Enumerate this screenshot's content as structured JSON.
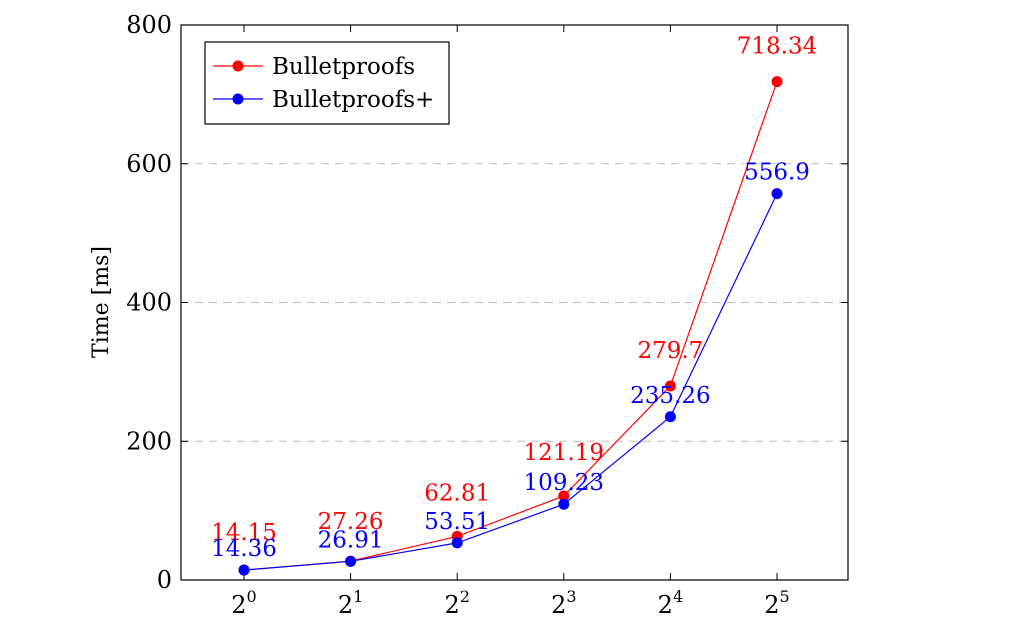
{
  "chart_data": {
    "type": "line",
    "title": "",
    "xlabel": "",
    "ylabel": "Time [ms]",
    "x": [
      1,
      2,
      4,
      8,
      16,
      32
    ],
    "x_tick_labels": [
      {
        "base": "2",
        "exp": "0"
      },
      {
        "base": "2",
        "exp": "1"
      },
      {
        "base": "2",
        "exp": "2"
      },
      {
        "base": "2",
        "exp": "3"
      },
      {
        "base": "2",
        "exp": "4"
      },
      {
        "base": "2",
        "exp": "5"
      }
    ],
    "x_scale": "log2",
    "ylim": [
      0,
      800
    ],
    "y_ticks": [
      0,
      200,
      400,
      600,
      800
    ],
    "grid": "horizontal dashed",
    "legend_position": "top-left",
    "series": [
      {
        "name": "Bulletproofs",
        "color": "#ff0000",
        "values": [
          14.15,
          27.26,
          62.81,
          121.19,
          279.7,
          718.34
        ],
        "labels": [
          "14.15",
          "27.26",
          "62.81",
          "121.19",
          "279.7",
          "718.34"
        ]
      },
      {
        "name": "Bulletproofs+",
        "color": "#0000ff",
        "values": [
          14.36,
          26.91,
          53.51,
          109.23,
          235.26,
          556.9
        ],
        "labels": [
          "14.36",
          "26.91",
          "53.51",
          "109.23",
          "235.26",
          "556.9"
        ]
      }
    ]
  }
}
